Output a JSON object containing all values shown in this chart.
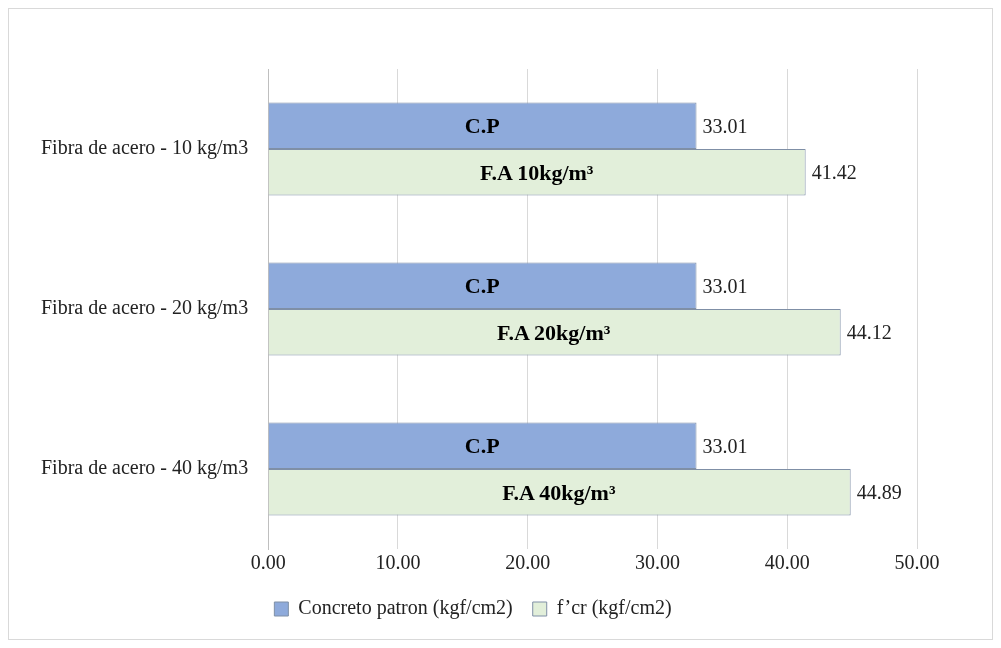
{
  "chart_data": {
    "type": "bar",
    "orientation": "horizontal",
    "categories": [
      "Fibra de acero - 10 kg/m3",
      "Fibra de acero - 20 kg/m3",
      "Fibra de acero - 40 kg/m3"
    ],
    "series": [
      {
        "name": "Concreto patron (kgf/cm2)",
        "color": "#8eaadb",
        "values": [
          33.01,
          33.01,
          33.01
        ]
      },
      {
        "name": "f’cr (kgf/cm2)",
        "color": "#e2efda",
        "values": [
          41.42,
          44.12,
          44.89
        ]
      }
    ],
    "xlim": [
      0,
      50
    ],
    "xticks": [
      {
        "value": 0,
        "label": "0.00"
      },
      {
        "value": 10,
        "label": "10.00"
      },
      {
        "value": 20,
        "label": "20.00"
      },
      {
        "value": 30,
        "label": "30.00"
      },
      {
        "value": 40,
        "label": "40.00"
      },
      {
        "value": 50,
        "label": "50.00"
      }
    ],
    "grid": "x",
    "legend": "bottom",
    "data_labels": true,
    "annotations": [
      {
        "text": "C.P",
        "x": 16.5,
        "y": "Fibra de acero - 10 kg/m3"
      },
      {
        "text": "F.A 10kg/m³",
        "x": 20.7,
        "y": "Fibra de acero - 10 kg/m3"
      },
      {
        "text": "C.P",
        "x": 16.5,
        "y": "Fibra de acero - 20 kg/m3"
      },
      {
        "text": "F.A 20kg/m³",
        "x": 22,
        "y": "Fibra de acero - 20 kg/m3"
      },
      {
        "text": "C.P",
        "x": 16.5,
        "y": "Fibra de acero - 40 kg/m3"
      },
      {
        "text": "F.A 40kg/m³",
        "x": 22.4,
        "y": "Fibra de acero - 40 kg/m3"
      }
    ]
  }
}
